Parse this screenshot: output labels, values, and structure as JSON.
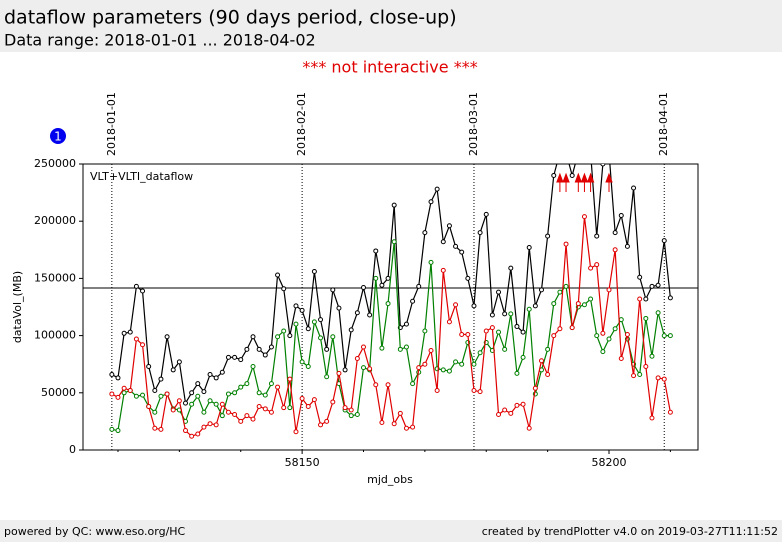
{
  "header": {
    "title": "dataflow parameters (90 days period, close-up)",
    "subtitle": "Data range: 2018-01-01 ... 2018-04-02"
  },
  "notice": "*** not interactive ***",
  "badge": "1",
  "chart_data": {
    "type": "line",
    "label": "VLT+VLTI_dataflow",
    "xlabel": "mjd_obs",
    "ylabel": "dataVol_(MB)",
    "xlim": [
      58114.3,
      58214.5
    ],
    "xticks": [
      58150,
      58200
    ],
    "xminor": [
      58120,
      58130,
      58140,
      58160,
      58170,
      58180,
      58190,
      58210
    ],
    "ylim": [
      0,
      250000
    ],
    "yticks": [
      0,
      50000,
      100000,
      150000,
      200000,
      250000
    ],
    "hline": 141600,
    "annotations": [
      {
        "label": "2018-01-01",
        "x": 58119
      },
      {
        "label": "2018-02-01",
        "x": 58150
      },
      {
        "label": "2018-03-01",
        "x": 58178
      },
      {
        "label": "2018-04-01",
        "x": 58209
      }
    ],
    "x": [
      58119,
      58120,
      58121,
      58122,
      58123,
      58124,
      58125,
      58126,
      58127,
      58128,
      58129,
      58130,
      58131,
      58132,
      58133,
      58134,
      58135,
      58136,
      58137,
      58138,
      58139,
      58140,
      58141,
      58142,
      58143,
      58144,
      58145,
      58146,
      58147,
      58148,
      58149,
      58150,
      58151,
      58152,
      58153,
      58154,
      58155,
      58156,
      58157,
      58158,
      58159,
      58160,
      58161,
      58162,
      58163,
      58164,
      58165,
      58166,
      58167,
      58168,
      58169,
      58170,
      58171,
      58172,
      58173,
      58174,
      58175,
      58176,
      58177,
      58178,
      58179,
      58180,
      58181,
      58182,
      58183,
      58184,
      58185,
      58186,
      58187,
      58188,
      58189,
      58190,
      58191,
      58192,
      58193,
      58194,
      58195,
      58196,
      58197,
      58198,
      58199,
      58200,
      58201,
      58202,
      58203,
      58204,
      58205,
      58206,
      58207,
      58208,
      58209,
      58210
    ],
    "series": [
      {
        "color": "#000000",
        "values": [
          66000,
          63000,
          102000,
          103000,
          143000,
          139000,
          73000,
          52000,
          62000,
          99000,
          70000,
          77000,
          41000,
          50000,
          58000,
          51000,
          66000,
          63000,
          68000,
          81000,
          81000,
          79000,
          88000,
          99000,
          88000,
          83000,
          90000,
          153000,
          141000,
          100000,
          126000,
          122000,
          106000,
          156000,
          114000,
          88000,
          140000,
          124000,
          70000,
          105000,
          120000,
          142000,
          118000,
          174000,
          144000,
          150000,
          214000,
          107000,
          110000,
          130000,
          143000,
          190000,
          217000,
          228000,
          182000,
          196000,
          178000,
          173000,
          150000,
          126000,
          190000,
          206000,
          118000,
          138000,
          119000,
          159000,
          108000,
          103000,
          177000,
          126000,
          140000,
          187000,
          240000,
          260000,
          260000,
          240000,
          260000,
          260000,
          260000,
          187000,
          250000,
          260000,
          190000,
          205000,
          178000,
          229000,
          151000,
          132000,
          143000,
          144000,
          183000,
          133000
        ]
      },
      {
        "color": "#008000",
        "values": [
          18000,
          17000,
          50000,
          52000,
          47000,
          48000,
          38000,
          33000,
          47000,
          49000,
          36000,
          35000,
          25000,
          40000,
          47000,
          33000,
          43000,
          40000,
          30000,
          49000,
          50000,
          55000,
          58000,
          73000,
          50000,
          48000,
          58000,
          99000,
          104000,
          37000,
          110000,
          77000,
          73000,
          112000,
          98000,
          64000,
          99000,
          58000,
          35000,
          30000,
          31000,
          72000,
          70000,
          150000,
          89000,
          128000,
          182000,
          88000,
          90000,
          58000,
          68000,
          104000,
          164000,
          71000,
          70000,
          69000,
          77000,
          75000,
          94000,
          75000,
          85000,
          94000,
          87000,
          103000,
          88000,
          119000,
          67000,
          81000,
          123000,
          49000,
          70000,
          88000,
          128000,
          138000,
          143000,
          107000,
          125000,
          127000,
          132000,
          100000,
          86000,
          97000,
          106000,
          114000,
          97000,
          75000,
          66000,
          115000,
          82000,
          120000,
          100000,
          100000
        ]
      },
      {
        "color": "#e00000",
        "values": [
          49000,
          46000,
          54000,
          52000,
          97000,
          92000,
          38000,
          19000,
          18000,
          49000,
          35000,
          43000,
          17000,
          12000,
          14000,
          20000,
          23000,
          22000,
          40000,
          33000,
          31000,
          25000,
          30000,
          27000,
          38000,
          36000,
          33000,
          55000,
          37000,
          62000,
          16000,
          45000,
          38000,
          44000,
          22000,
          25000,
          42000,
          67000,
          37000,
          35000,
          80000,
          90000,
          71000,
          57000,
          24000,
          57000,
          23000,
          32000,
          19000,
          20000,
          72000,
          75000,
          87000,
          52000,
          157000,
          112000,
          127000,
          101000,
          101000,
          52000,
          51000,
          104000,
          107000,
          31000,
          35000,
          32000,
          39000,
          40000,
          19000,
          54000,
          78000,
          66000,
          100000,
          106000,
          180000,
          107000,
          128000,
          204000,
          159000,
          162000,
          102000,
          140000,
          175000,
          80000,
          101000,
          65000,
          132000,
          73000,
          28000,
          63000,
          62000,
          33000
        ]
      }
    ]
  },
  "footer": {
    "left": "powered by QC: www.eso.org/HC",
    "right": "created by trendPlotter v4.0 on 2019-03-27T11:11:52"
  }
}
